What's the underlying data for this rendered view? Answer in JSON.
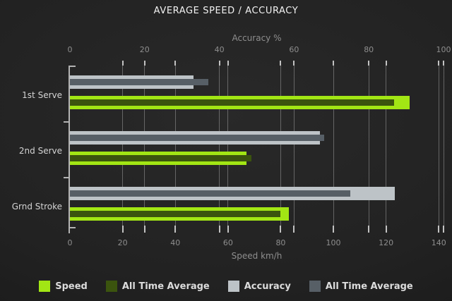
{
  "title": "AVERAGE SPEED / ACCURACY",
  "chart_data": {
    "type": "bar",
    "orientation": "horizontal",
    "title": "AVERAGE SPEED / ACCURACY",
    "categories": [
      "1st Serve",
      "2nd Serve",
      "Grnd Stroke"
    ],
    "series": [
      {
        "name": "Speed",
        "axis": "speed",
        "role": "outer",
        "color": "#a2e614",
        "values": [
          129,
          67,
          83
        ]
      },
      {
        "name": "All Time Average",
        "axis": "speed",
        "role": "inner",
        "color": "#3b540e",
        "values": [
          123,
          69,
          80
        ]
      },
      {
        "name": "Accuracy",
        "axis": "accuracy",
        "role": "outer",
        "color": "#bdc3c7",
        "values": [
          33,
          67,
          87
        ]
      },
      {
        "name": "All Time Average",
        "axis": "accuracy",
        "role": "inner",
        "color": "#575f66",
        "values": [
          37,
          68,
          75
        ]
      }
    ],
    "axes": {
      "top": {
        "label": "Accuracy %",
        "ticks": [
          0,
          20,
          40,
          60,
          80,
          100
        ],
        "range": [
          0,
          100
        ]
      },
      "bottom": {
        "label": "Speed km/h",
        "ticks": [
          0,
          20,
          40,
          60,
          80,
          100,
          120,
          140
        ],
        "range": [
          0,
          140
        ]
      }
    },
    "grid": true,
    "legend_position": "bottom",
    "theme": {
      "background": "#212121",
      "title_text": "#f2f2f2",
      "muted_text": "#8e8e8e",
      "category_text": "#d4d4d4",
      "legend_text": "#dcdcdc",
      "grid_color": "#bebebe",
      "axis_color": "#b3b3b3"
    }
  }
}
